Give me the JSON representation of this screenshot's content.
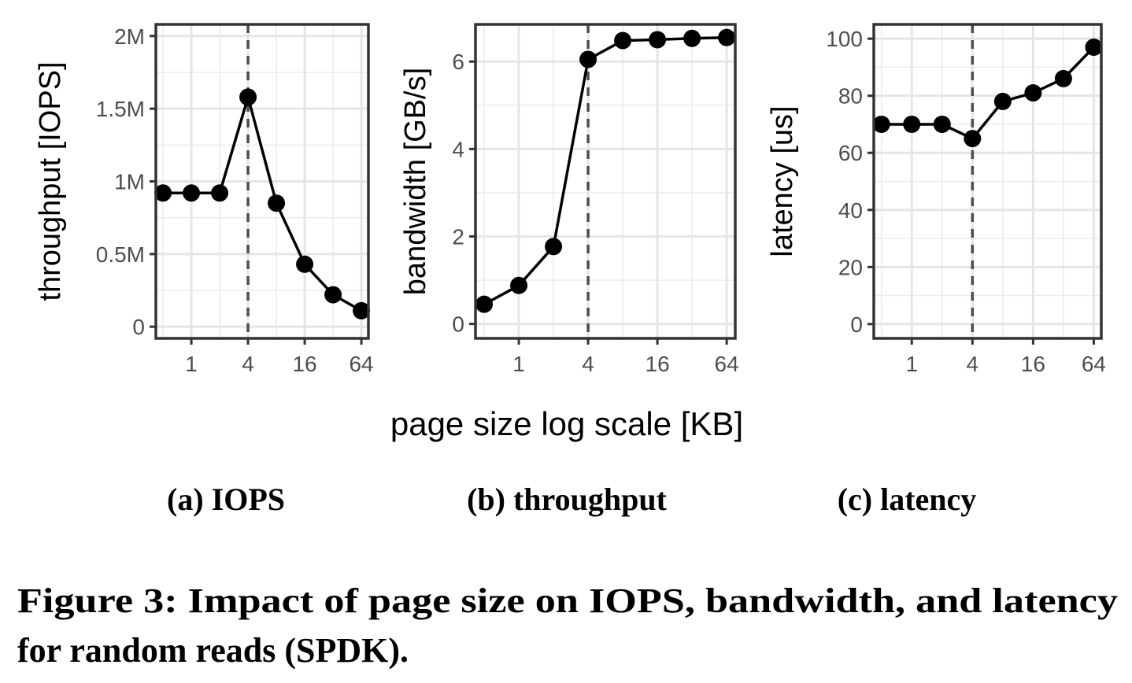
{
  "chart_data": [
    {
      "type": "line",
      "subcaption": "(a) IOPS",
      "xlabel": "page size log scale [KB]",
      "ylabel": "throughput [IOPS]",
      "x_scale": "log2",
      "x": [
        0.5,
        1,
        2,
        4,
        8,
        16,
        32,
        64
      ],
      "xticks": [
        1,
        4,
        16,
        64
      ],
      "xtick_labels": [
        "1",
        "4",
        "16",
        "64"
      ],
      "xlim": [
        0.42,
        76
      ],
      "yticks": [
        0,
        500000,
        1000000,
        1500000,
        2000000
      ],
      "ytick_labels": [
        "0",
        "0.5M",
        "1M",
        "1.5M",
        "2M"
      ],
      "ylim": [
        -80000,
        2080000
      ],
      "series": [
        {
          "values": [
            920000,
            920000,
            920000,
            1580000,
            850000,
            430000,
            220000,
            110000
          ]
        }
      ],
      "vline_x": 4,
      "grid": true,
      "color": "#000000"
    },
    {
      "type": "line",
      "subcaption": "(b) throughput",
      "xlabel": "page size log scale [KB]",
      "ylabel": "bandwidth [GB/s]",
      "x_scale": "log2",
      "x": [
        0.5,
        1,
        2,
        4,
        8,
        16,
        32,
        64
      ],
      "xticks": [
        1,
        4,
        16,
        64
      ],
      "xtick_labels": [
        "1",
        "4",
        "16",
        "64"
      ],
      "xlim": [
        0.42,
        76
      ],
      "yticks": [
        0,
        2,
        4,
        6
      ],
      "ytick_labels": [
        "0",
        "2",
        "4",
        "6"
      ],
      "ylim": [
        -0.33,
        6.85
      ],
      "series": [
        {
          "values": [
            0.45,
            0.88,
            1.77,
            6.05,
            6.48,
            6.5,
            6.53,
            6.55
          ]
        }
      ],
      "vline_x": 4,
      "grid": true,
      "color": "#000000"
    },
    {
      "type": "line",
      "subcaption": "(c) latency",
      "xlabel": "page size log scale [KB]",
      "ylabel": "latency [us]",
      "x_scale": "log2",
      "x": [
        0.5,
        1,
        2,
        4,
        8,
        16,
        32,
        64
      ],
      "xticks": [
        1,
        4,
        16,
        64
      ],
      "xtick_labels": [
        "1",
        "4",
        "16",
        "64"
      ],
      "xlim": [
        0.42,
        76
      ],
      "yticks": [
        0,
        20,
        40,
        60,
        80,
        100
      ],
      "ytick_labels": [
        "0",
        "20",
        "40",
        "60",
        "80",
        "100"
      ],
      "ylim": [
        -5,
        105
      ],
      "series": [
        {
          "values": [
            70,
            70,
            70,
            65,
            78,
            81,
            86,
            97
          ]
        }
      ],
      "vline_x": 4,
      "grid": true,
      "color": "#000000"
    }
  ],
  "shared_xlabel": "page size log scale [KB]",
  "figure_caption_line1": "Figure 3: Impact of page size on IOPS, bandwidth, and latency",
  "figure_caption_line2": "for random reads (SPDK)."
}
